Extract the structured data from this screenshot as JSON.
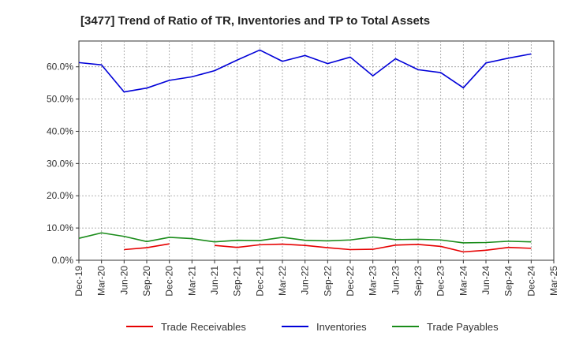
{
  "chart_data": {
    "type": "line",
    "title": "[3477]  Trend of Ratio of TR, Inventories and TP to Total Assets",
    "xlabel": "",
    "ylabel": "",
    "ylim": [
      0,
      68
    ],
    "y_ticks": [
      0,
      10,
      20,
      30,
      40,
      50,
      60
    ],
    "y_tick_labels": [
      "0.0%",
      "10.0%",
      "20.0%",
      "30.0%",
      "40.0%",
      "50.0%",
      "60.0%"
    ],
    "categories": [
      "Dec-19",
      "Mar-20",
      "Jun-20",
      "Sep-20",
      "Dec-20",
      "Mar-21",
      "Jun-21",
      "Sep-21",
      "Dec-21",
      "Mar-22",
      "Jun-22",
      "Sep-22",
      "Dec-22",
      "Mar-23",
      "Jun-23",
      "Sep-23",
      "Dec-23",
      "Mar-24",
      "Jun-24",
      "Sep-24",
      "Dec-24",
      "Mar-25"
    ],
    "grid": true,
    "legend_position": "bottom",
    "series": [
      {
        "name": "Trade Receivables",
        "color": "#e60000",
        "values": [
          null,
          null,
          3.3,
          3.9,
          5.1,
          null,
          4.6,
          4.0,
          4.8,
          5.0,
          4.6,
          3.9,
          3.3,
          3.4,
          4.7,
          4.9,
          4.3,
          2.6,
          3.1,
          4.0,
          3.7,
          null
        ]
      },
      {
        "name": "Inventories",
        "color": "#0000d8",
        "values": [
          61.3,
          60.6,
          52.2,
          53.4,
          55.8,
          56.9,
          58.8,
          62.1,
          65.2,
          61.7,
          63.5,
          61.0,
          63.0,
          57.2,
          62.5,
          59.1,
          58.2,
          53.5,
          61.2,
          62.7,
          64.0,
          null
        ]
      },
      {
        "name": "Trade Payables",
        "color": "#1a8c1a",
        "values": [
          6.8,
          8.5,
          7.4,
          5.8,
          7.1,
          6.7,
          5.7,
          6.2,
          6.1,
          7.1,
          6.2,
          6.0,
          6.3,
          7.2,
          6.4,
          6.5,
          6.3,
          5.4,
          5.5,
          5.9,
          5.7,
          null
        ]
      }
    ]
  }
}
